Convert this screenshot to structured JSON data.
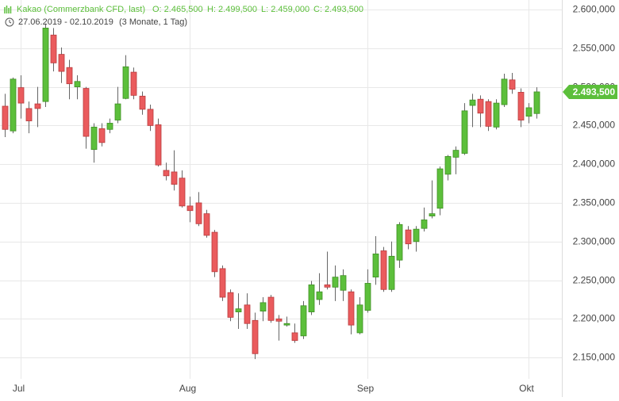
{
  "chart_data": {
    "type": "candlestick",
    "title": "Kakao (Commerzbank CFD, last)",
    "ohlc_labels": [
      "O: 2.465,500",
      "H: 2.499,500",
      "L: 2.459,000",
      "C: 2.493,500"
    ],
    "date_range": "27.06.2019 - 02.10.2019",
    "period": "(3 Monate, 1 Tag)",
    "up_color": "#5cbf3b",
    "down_color": "#ea5b5d",
    "grid": true,
    "ylim": [
      2122.5,
      2612.3
    ],
    "yticks": [
      {
        "value": 2150,
        "label": "2.150,000"
      },
      {
        "value": 2200,
        "label": "2.200,000"
      },
      {
        "value": 2250,
        "label": "2.250,000"
      },
      {
        "value": 2300,
        "label": "2.300,000"
      },
      {
        "value": 2350,
        "label": "2.350,000"
      },
      {
        "value": 2400,
        "label": "2.400,000"
      },
      {
        "value": 2450,
        "label": "2.450,000"
      },
      {
        "value": 2500,
        "label": "2.500,000"
      },
      {
        "value": 2550,
        "label": "2.550,000"
      },
      {
        "value": 2600,
        "label": "2.600,000"
      }
    ],
    "last_price": {
      "value": 2493.5,
      "label": "2.493,500"
    },
    "categories": [
      null,
      null,
      "Jul",
      null,
      null,
      null,
      null,
      null,
      null,
      null,
      null,
      null,
      null,
      null,
      null,
      null,
      null,
      null,
      null,
      null,
      null,
      null,
      null,
      "Aug",
      null,
      null,
      null,
      null,
      null,
      null,
      null,
      null,
      null,
      null,
      null,
      null,
      null,
      null,
      null,
      null,
      null,
      null,
      null,
      null,
      null,
      "Sep",
      null,
      null,
      null,
      null,
      null,
      null,
      null,
      null,
      null,
      null,
      null,
      null,
      null,
      null,
      null,
      null,
      null,
      null,
      null,
      "Okt",
      null
    ],
    "open": [
      2475,
      2443,
      2499,
      2472,
      2478,
      2481,
      2567,
      2542,
      2525,
      2500,
      2498,
      2419,
      2446,
      2445,
      2457,
      2485,
      2519,
      2488,
      2471,
      2451,
      2392,
      2390,
      2382,
      2346,
      2350,
      2336,
      2312,
      2265,
      2234,
      2209,
      2218,
      2198,
      2210,
      2228,
      2200,
      2192,
      2182,
      2178,
      2209,
      2225,
      2244,
      2241,
      2237,
      2235,
      2182,
      2211,
      2254,
      2288,
      2238,
      2276,
      2315,
      2300,
      2317,
      2333,
      2343,
      2387,
      2409,
      2414,
      2476,
      2484,
      2481,
      2448,
      2477,
      2509,
      2493,
      2462,
      2465.5
    ],
    "high": [
      2491,
      2512,
      2515,
      2481,
      2500,
      2582,
      2576,
      2551,
      2535,
      2515,
      2500,
      2453,
      2453,
      2459,
      2500,
      2541,
      2525,
      2494,
      2477,
      2459,
      2402,
      2418,
      2392,
      2358,
      2364,
      2341,
      2315,
      2269,
      2238,
      2233,
      2233,
      2208,
      2228,
      2231,
      2205,
      2203,
      2194,
      2223,
      2249,
      2259,
      2287,
      2269,
      2264,
      2238,
      2228,
      2264,
      2307,
      2293,
      2300,
      2325,
      2320,
      2320,
      2344,
      2379,
      2397,
      2412,
      2423,
      2479,
      2491,
      2489,
      2484,
      2484,
      2517,
      2518,
      2498,
      2479,
      2499.5
    ],
    "low": [
      2435,
      2440,
      2459,
      2440,
      2448,
      2474,
      2520,
      2505,
      2484,
      2484,
      2420,
      2402,
      2423,
      2440,
      2453,
      2484,
      2484,
      2464,
      2443,
      2397,
      2379,
      2366,
      2344,
      2325,
      2320,
      2305,
      2254,
      2223,
      2197,
      2187,
      2187,
      2148,
      2197,
      2195,
      2172,
      2190,
      2169,
      2174,
      2205,
      2218,
      2238,
      2223,
      2223,
      2180,
      2180,
      2208,
      2244,
      2235,
      2235,
      2266,
      2290,
      2287,
      2313,
      2330,
      2334,
      2379,
      2387,
      2412,
      2448,
      2448,
      2443,
      2445,
      2474,
      2491,
      2448,
      2453,
      2459
    ],
    "close": [
      2445,
      2510,
      2479,
      2456,
      2472,
      2576,
      2531,
      2520,
      2504,
      2507,
      2436,
      2448,
      2428,
      2453,
      2478,
      2526,
      2489,
      2471,
      2450,
      2399,
      2385,
      2374,
      2346,
      2340,
      2323,
      2308,
      2261,
      2228,
      2202,
      2213,
      2194,
      2155,
      2221,
      2198,
      2197,
      2194,
      2172,
      2217,
      2244,
      2235,
      2241,
      2254,
      2256,
      2192,
      2218,
      2246,
      2284,
      2238,
      2281,
      2322,
      2297,
      2316,
      2328,
      2336,
      2394,
      2410,
      2418,
      2469,
      2483,
      2466,
      2449,
      2479,
      2510,
      2497,
      2457,
      2473,
      2493.5
    ]
  }
}
